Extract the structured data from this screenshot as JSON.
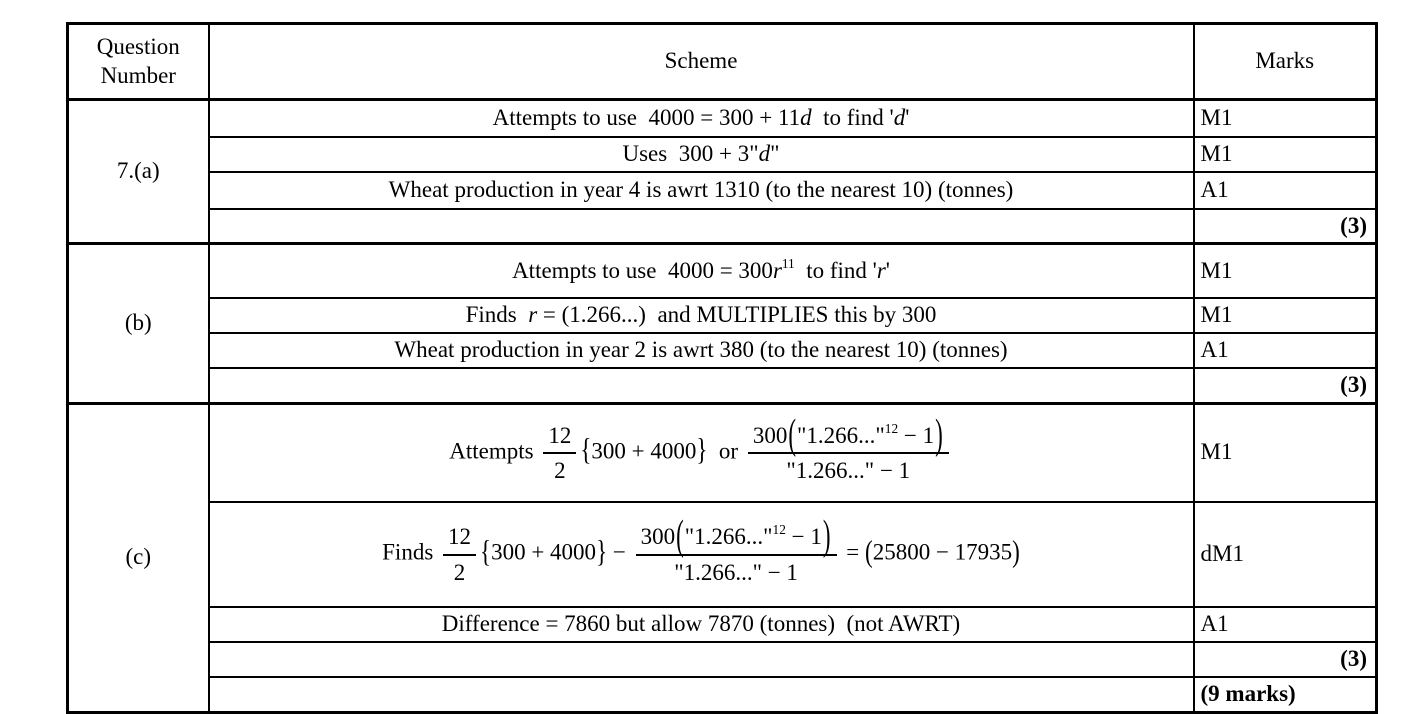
{
  "header": {
    "question_number": "Question Number",
    "scheme": "Scheme",
    "marks": "Marks"
  },
  "sections": [
    {
      "label": "7.(a)",
      "rows": [
        {
          "parts": [
            {
              "t": "Attempts to use  "
            },
            {
              "t": "4000 = 300 + 11"
            },
            {
              "t": "d",
              "i": 1
            },
            {
              "t": "  to find '"
            },
            {
              "t": "d",
              "i": 1
            },
            {
              "t": "'"
            }
          ],
          "mark": "M1"
        },
        {
          "parts": [
            {
              "t": "Uses  "
            },
            {
              "t": "300 + 3\""
            },
            {
              "t": "d",
              "i": 1
            },
            {
              "t": "\""
            }
          ],
          "mark": "M1"
        },
        {
          "parts": [
            {
              "t": "Wheat production in year 4 is awrt 1310 (to the nearest 10) (tonnes)"
            }
          ],
          "mark": "A1"
        },
        {
          "parts": [],
          "mark": "(3)"
        }
      ]
    },
    {
      "label": "(b)",
      "rows": [
        {
          "parts": [
            {
              "t": "Attempts to use  "
            },
            {
              "t": "4000 = 300"
            },
            {
              "t": "r",
              "i": 1
            },
            {
              "t": "11",
              "sup": 1
            },
            {
              "t": "  to find '"
            },
            {
              "t": "r",
              "i": 1
            },
            {
              "t": "'"
            }
          ],
          "mark": "M1"
        },
        {
          "parts": [
            {
              "t": "Finds  "
            },
            {
              "t": "r",
              "i": 1
            },
            {
              "t": " = (1.266...)  and MULTIPLIES this by 300"
            }
          ],
          "mark": "M1"
        },
        {
          "parts": [
            {
              "t": "Wheat production in year 2 is awrt 380 (to the nearest 10) (tonnes)"
            }
          ],
          "mark": "A1"
        },
        {
          "parts": [],
          "mark": "(3)"
        }
      ]
    },
    {
      "label": "(c)",
      "rows": [
        {
          "parts": [
            {
              "t": "Attempts "
            },
            {
              "frac": {
                "num": [
                  {
                    "t": "12"
                  }
                ],
                "den": [
                  {
                    "t": "2"
                  }
                ]
              }
            },
            {
              "t": "{",
              "cb": 1
            },
            {
              "t": "300 + 4000"
            },
            {
              "t": "}",
              "cb": 1
            },
            {
              "t": "  or "
            },
            {
              "frac": {
                "num": [
                  {
                    "t": "300"
                  },
                  {
                    "t": "(",
                    "bp": 1
                  },
                  {
                    "t": "\"1.266...\""
                  },
                  {
                    "t": "12",
                    "sup": 1
                  },
                  {
                    "t": " − 1"
                  },
                  {
                    "t": ")",
                    "bp": 1
                  }
                ],
                "den": [
                  {
                    "t": "\"1.266...\" − 1"
                  }
                ]
              }
            }
          ],
          "mark": "M1"
        },
        {
          "parts": [
            {
              "t": "Finds "
            },
            {
              "frac": {
                "num": [
                  {
                    "t": "12"
                  }
                ],
                "den": [
                  {
                    "t": "2"
                  }
                ]
              }
            },
            {
              "t": "{",
              "cb": 1
            },
            {
              "t": "300 + 4000"
            },
            {
              "t": "}",
              "cb": 1
            },
            {
              "t": " − "
            },
            {
              "frac": {
                "num": [
                  {
                    "t": "300"
                  },
                  {
                    "t": "(",
                    "bp": 1
                  },
                  {
                    "t": "\"1.266...\""
                  },
                  {
                    "t": "12",
                    "sup": 1
                  },
                  {
                    "t": " − 1"
                  },
                  {
                    "t": ")",
                    "bp": 1
                  }
                ],
                "den": [
                  {
                    "t": "\"1.266...\" − 1"
                  }
                ]
              }
            },
            {
              "t": " = "
            },
            {
              "t": "(",
              "cb": 1
            },
            {
              "t": "25800 − 17935"
            },
            {
              "t": ")",
              "cb": 1
            }
          ],
          "mark": "dM1"
        },
        {
          "parts": [
            {
              "t": "Difference = 7860 but allow 7870 (tonnes)  (not AWRT)"
            }
          ],
          "mark": "A1"
        },
        {
          "parts": [],
          "mark": "(3)"
        },
        {
          "parts": [],
          "mark": "(9 marks)"
        }
      ]
    }
  ]
}
